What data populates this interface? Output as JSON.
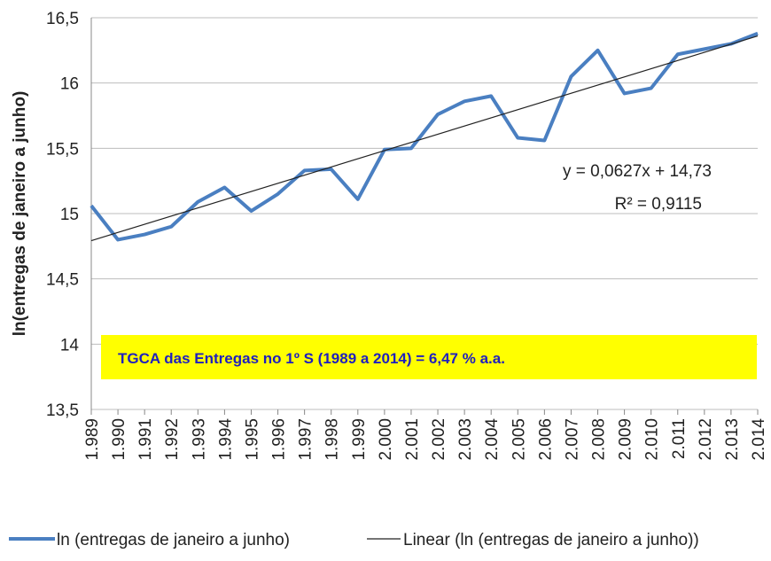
{
  "chart_data": {
    "type": "line",
    "y_label": "ln(entregas de janeiro a junho)",
    "categories": [
      "1.989",
      "1.990",
      "1.991",
      "1.992",
      "1.993",
      "1.994",
      "1.995",
      "1.996",
      "1.997",
      "1.998",
      "1.999",
      "2.000",
      "2.001",
      "2.002",
      "2.003",
      "2.004",
      "2.005",
      "2.006",
      "2.007",
      "2.008",
      "2.009",
      "2.010",
      "2.011",
      "2.012",
      "2.013",
      "2.014"
    ],
    "series": [
      {
        "name": "ln (entregas de janeiro a junho)",
        "color": "#4a7fc1",
        "values": [
          15.06,
          14.8,
          14.84,
          14.9,
          15.09,
          15.2,
          15.02,
          15.15,
          15.33,
          15.34,
          15.11,
          15.49,
          15.5,
          15.76,
          15.86,
          15.9,
          15.58,
          15.56,
          16.05,
          16.25,
          15.92,
          15.96,
          16.22,
          16.26,
          16.3,
          16.38
        ]
      }
    ],
    "trend": {
      "name": "Linear (ln (entregas de janeiro a junho))",
      "color": "#222222",
      "slope": 0.0627,
      "intercept": 14.73,
      "equation": "y = 0,0627x + 14,73",
      "r2": "R² = 0,9115"
    },
    "annotation": "TGCA das Entregas no 1º S (1989 a 2014) = 6,47 % a.a.",
    "ylim": [
      13.5,
      16.5
    ],
    "yticks": [
      {
        "value": 13.5,
        "label": "13,5"
      },
      14,
      {
        "value": 14.5,
        "label": "14,5"
      },
      15,
      {
        "value": 15.5,
        "label": "15,5"
      },
      16,
      {
        "value": 16.5,
        "label": "16,5"
      }
    ],
    "grid": true
  }
}
